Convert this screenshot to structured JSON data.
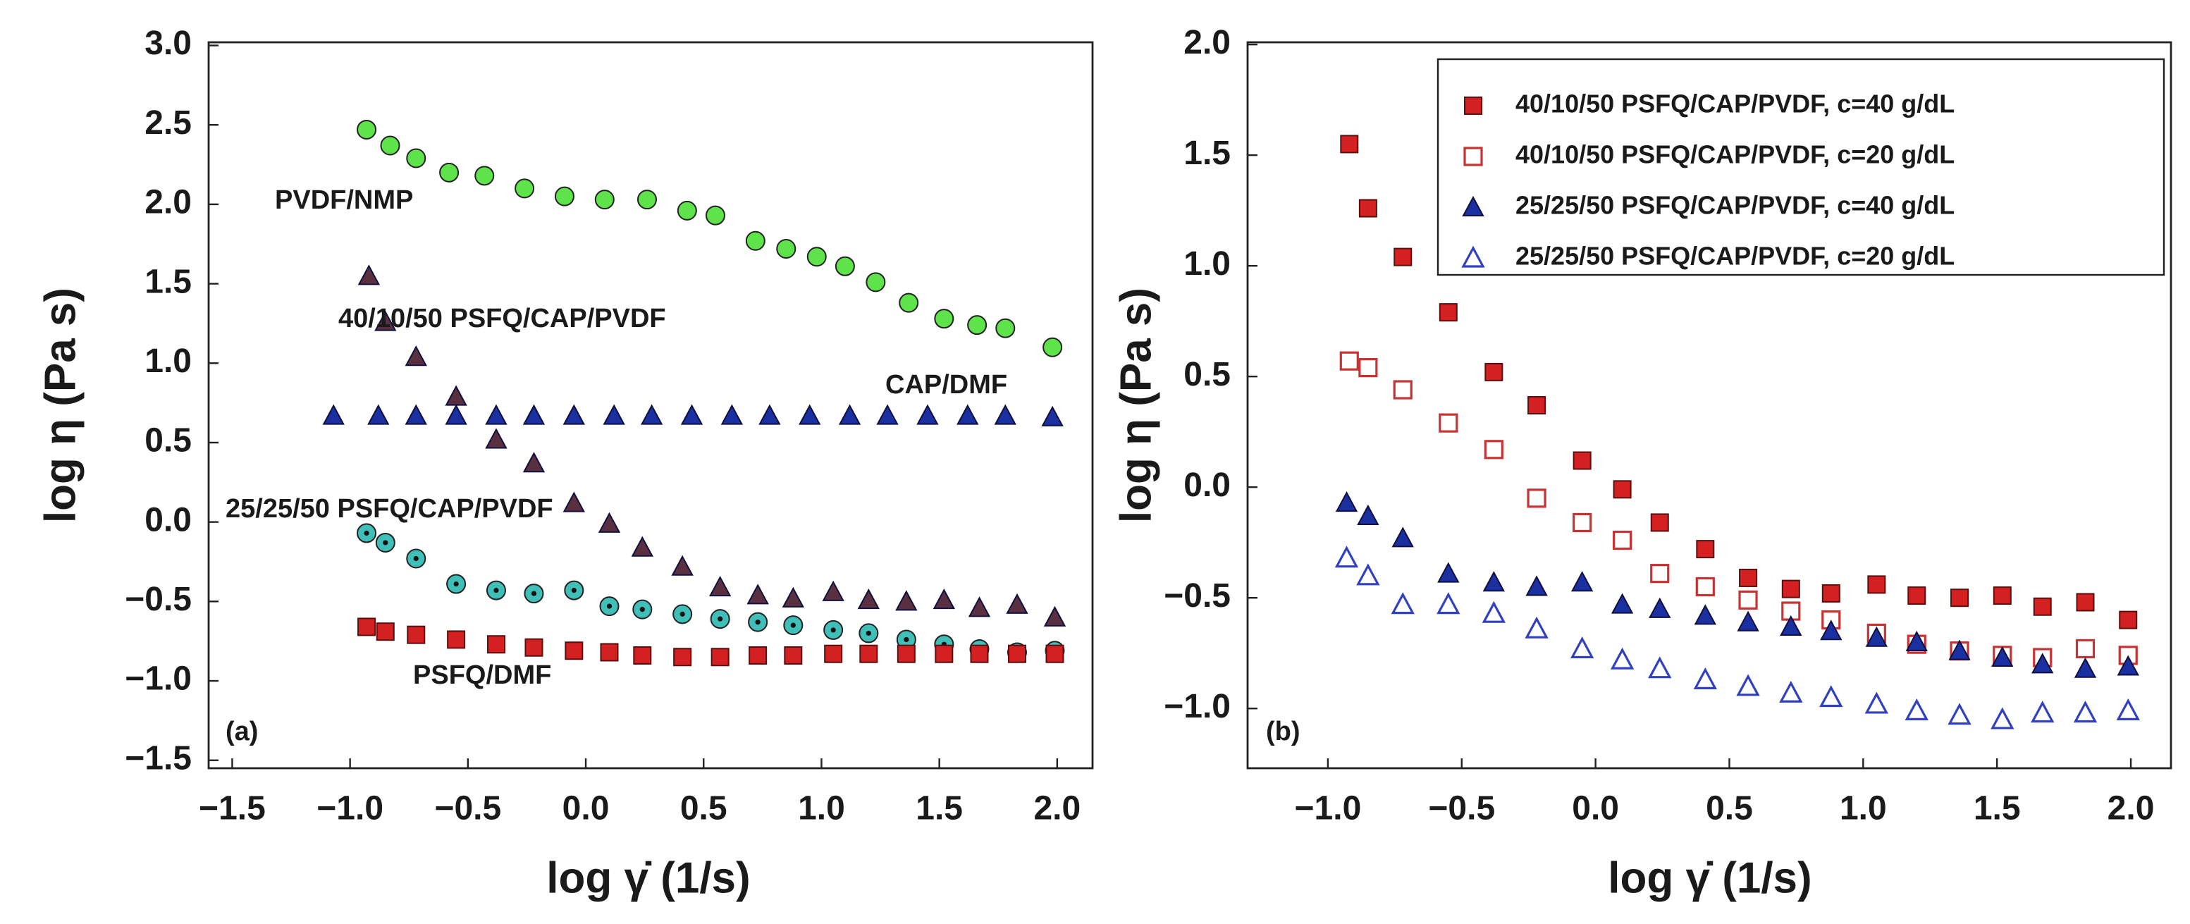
{
  "chart_data": [
    {
      "type": "scatter",
      "xlabel": "log γ̇ (1/s)",
      "ylabel": "log η (Pa s)",
      "panel": "(a)",
      "xlim": [
        -1.6,
        2.15
      ],
      "ylim": [
        -1.55,
        3.02
      ],
      "xticks": [
        {
          "value": -1.5,
          "label": "−1.5"
        },
        {
          "value": -1.0,
          "label": "−1.0"
        },
        {
          "value": -0.5,
          "label": "−0.5"
        },
        {
          "value": 0,
          "label": "0.0"
        },
        0.5,
        {
          "value": 1,
          "label": "1.0"
        },
        1.5,
        {
          "value": 2,
          "label": "2.0"
        }
      ],
      "yticks": [
        {
          "value": -1.5,
          "label": "−1.5"
        },
        {
          "value": -1.0,
          "label": "−1.0"
        },
        {
          "value": -0.5,
          "label": "−0.5"
        },
        {
          "value": 0,
          "label": "0.0"
        },
        0.5,
        {
          "value": 1,
          "label": "1.0"
        },
        1.5,
        {
          "value": 2,
          "label": "2.0"
        },
        2.5,
        {
          "value": 3,
          "label": "3.0"
        }
      ],
      "series": [
        {
          "name": "PVDF/NMP",
          "color": "#5ee34a",
          "marker": "circle",
          "filled": true,
          "x": [
            -0.93,
            -0.83,
            -0.72,
            -0.58,
            -0.43,
            -0.26,
            -0.09,
            0.08,
            0.26,
            0.43,
            0.55,
            0.72,
            0.85,
            0.98,
            1.1,
            1.23,
            1.37,
            1.52,
            1.66,
            1.78,
            1.98
          ],
          "values": [
            2.47,
            2.37,
            2.29,
            2.2,
            2.18,
            2.1,
            2.05,
            2.03,
            2.03,
            1.96,
            1.93,
            1.77,
            1.72,
            1.67,
            1.61,
            1.51,
            1.38,
            1.28,
            1.24,
            1.22,
            1.1
          ]
        },
        {
          "name": "40/10/50 PSFQ/CAP/PVDF",
          "color": "#5a3040",
          "marker": "triangle",
          "filled": true,
          "x": [
            -0.92,
            -0.85,
            -0.72,
            -0.55,
            -0.38,
            -0.22,
            -0.05,
            0.1,
            0.24,
            0.41,
            0.57,
            0.73,
            0.88,
            1.05,
            1.2,
            1.36,
            1.52,
            1.67,
            1.83,
            1.99
          ],
          "values": [
            1.55,
            1.26,
            1.04,
            0.79,
            0.52,
            0.37,
            0.12,
            -0.01,
            -0.16,
            -0.28,
            -0.41,
            -0.46,
            -0.48,
            -0.44,
            -0.49,
            -0.5,
            -0.49,
            -0.54,
            -0.52,
            -0.6
          ]
        },
        {
          "name": "CAP/DMF",
          "color": "#1a2fa0",
          "marker": "triangle",
          "filled": true,
          "x": [
            -1.07,
            -0.88,
            -0.72,
            -0.55,
            -0.38,
            -0.22,
            -0.05,
            0.12,
            0.28,
            0.45,
            0.62,
            0.78,
            0.95,
            1.12,
            1.28,
            1.45,
            1.62,
            1.78,
            1.98
          ],
          "values": [
            0.67,
            0.67,
            0.67,
            0.67,
            0.67,
            0.67,
            0.67,
            0.67,
            0.67,
            0.67,
            0.67,
            0.67,
            0.67,
            0.67,
            0.67,
            0.67,
            0.67,
            0.67,
            0.66
          ]
        },
        {
          "name": "25/25/50 PSFQ/CAP/PVDF",
          "color": "#3fbfb8",
          "marker": "circle-dot",
          "filled": true,
          "x": [
            -0.93,
            -0.85,
            -0.72,
            -0.55,
            -0.38,
            -0.22,
            -0.05,
            0.1,
            0.24,
            0.41,
            0.57,
            0.73,
            0.88,
            1.05,
            1.2,
            1.36,
            1.52,
            1.67,
            1.83,
            1.99
          ],
          "values": [
            -0.07,
            -0.13,
            -0.23,
            -0.39,
            -0.43,
            -0.45,
            -0.43,
            -0.53,
            -0.55,
            -0.58,
            -0.61,
            -0.63,
            -0.65,
            -0.68,
            -0.7,
            -0.74,
            -0.77,
            -0.8,
            -0.82,
            -0.81
          ]
        },
        {
          "name": "PSFQ/DMF",
          "color": "#d42020",
          "marker": "square",
          "filled": true,
          "x": [
            -0.93,
            -0.85,
            -0.72,
            -0.55,
            -0.38,
            -0.22,
            -0.05,
            0.1,
            0.24,
            0.41,
            0.57,
            0.73,
            0.88,
            1.05,
            1.2,
            1.36,
            1.52,
            1.67,
            1.83,
            1.99
          ],
          "values": [
            -0.66,
            -0.69,
            -0.71,
            -0.74,
            -0.77,
            -0.79,
            -0.81,
            -0.82,
            -0.84,
            -0.85,
            -0.85,
            -0.84,
            -0.84,
            -0.83,
            -0.83,
            -0.83,
            -0.83,
            -0.83,
            -0.83,
            -0.83
          ]
        }
      ]
    },
    {
      "type": "scatter",
      "xlabel": "log γ̇ (1/s)",
      "ylabel": "log η (Pa s)",
      "panel": "(b)",
      "legend": "upper right",
      "xlim": [
        -1.3,
        2.15
      ],
      "ylim": [
        -1.27,
        2.01
      ],
      "xticks": [
        {
          "value": -1.0,
          "label": "−1.0"
        },
        {
          "value": -0.5,
          "label": "−0.5"
        },
        {
          "value": 0,
          "label": "0.0"
        },
        0.5,
        {
          "value": 1,
          "label": "1.0"
        },
        1.5,
        {
          "value": 2,
          "label": "2.0"
        }
      ],
      "yticks": [
        {
          "value": -1.0,
          "label": "−1.0"
        },
        {
          "value": -0.5,
          "label": "−0.5"
        },
        {
          "value": 0,
          "label": "0.0"
        },
        0.5,
        {
          "value": 1,
          "label": "1.0"
        },
        1.5,
        {
          "value": 2,
          "label": "2.0"
        }
      ],
      "series": [
        {
          "name": "40/10/50 PSFQ/CAP/PVDF, c=40 g/dL",
          "color": "#d42020",
          "marker": "square",
          "filled": true,
          "x": [
            -0.92,
            -0.85,
            -0.72,
            -0.55,
            -0.38,
            -0.22,
            -0.05,
            0.1,
            0.24,
            0.41,
            0.57,
            0.73,
            0.88,
            1.05,
            1.2,
            1.36,
            1.52,
            1.67,
            1.83,
            1.99
          ],
          "values": [
            1.55,
            1.26,
            1.04,
            0.79,
            0.52,
            0.37,
            0.12,
            -0.01,
            -0.16,
            -0.28,
            -0.41,
            -0.46,
            -0.48,
            -0.44,
            -0.49,
            -0.5,
            -0.49,
            -0.54,
            -0.52,
            -0.6
          ]
        },
        {
          "name": "40/10/50 PSFQ/CAP/PVDF, c=20 g/dL",
          "color": "#c83232",
          "marker": "square",
          "filled": false,
          "x": [
            -0.92,
            -0.85,
            -0.72,
            -0.55,
            -0.38,
            -0.22,
            -0.05,
            0.1,
            0.24,
            0.41,
            0.57,
            0.73,
            0.88,
            1.05,
            1.2,
            1.36,
            1.52,
            1.67,
            1.83,
            1.99
          ],
          "values": [
            0.57,
            0.54,
            0.44,
            0.29,
            0.17,
            -0.05,
            -0.16,
            -0.24,
            -0.39,
            -0.45,
            -0.51,
            -0.56,
            -0.6,
            -0.66,
            -0.71,
            -0.74,
            -0.76,
            -0.77,
            -0.73,
            -0.76
          ]
        },
        {
          "name": "25/25/50 PSFQ/CAP/PVDF, c=40 g/dL",
          "color": "#1a2fa0",
          "marker": "triangle",
          "filled": true,
          "x": [
            -0.93,
            -0.85,
            -0.72,
            -0.55,
            -0.38,
            -0.22,
            -0.05,
            0.1,
            0.24,
            0.41,
            0.57,
            0.73,
            0.88,
            1.05,
            1.2,
            1.36,
            1.52,
            1.67,
            1.83,
            1.99
          ],
          "values": [
            -0.07,
            -0.13,
            -0.23,
            -0.39,
            -0.43,
            -0.45,
            -0.43,
            -0.53,
            -0.55,
            -0.58,
            -0.61,
            -0.63,
            -0.65,
            -0.68,
            -0.7,
            -0.74,
            -0.77,
            -0.8,
            -0.82,
            -0.81
          ]
        },
        {
          "name": "25/25/50 PSFQ/CAP/PVDF, c=20 g/dL",
          "color": "#3040c0",
          "marker": "triangle",
          "filled": false,
          "x": [
            -0.93,
            -0.85,
            -0.72,
            -0.55,
            -0.38,
            -0.22,
            -0.05,
            0.1,
            0.24,
            0.41,
            0.57,
            0.73,
            0.88,
            1.05,
            1.2,
            1.36,
            1.52,
            1.67,
            1.83,
            1.99
          ],
          "values": [
            -0.32,
            -0.4,
            -0.53,
            -0.53,
            -0.57,
            -0.64,
            -0.73,
            -0.78,
            -0.82,
            -0.87,
            -0.9,
            -0.93,
            -0.95,
            -0.98,
            -1.01,
            -1.03,
            -1.05,
            -1.02,
            -1.02,
            -1.01
          ]
        }
      ]
    }
  ]
}
